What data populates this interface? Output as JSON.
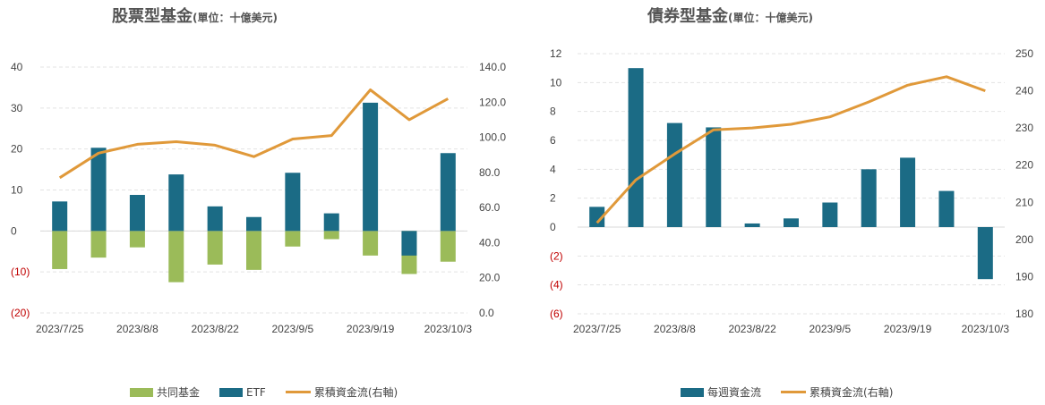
{
  "chart_data": [
    {
      "type": "bar",
      "title": "股票型基金",
      "unit": "(單位：十億美元)",
      "x_ticks": [
        "2023/7/25",
        "2023/8/8",
        "2023/8/22",
        "2023/9/5",
        "2023/9/19",
        "2023/10/3"
      ],
      "y_left_ticks": [
        "40",
        "30",
        "20",
        "10",
        "0",
        "(10)",
        "(20)"
      ],
      "y_right_ticks": [
        "140.0",
        "120.0",
        "100.0",
        "80.0",
        "60.0",
        "40.0",
        "20.0",
        "0.0"
      ],
      "ylim": [
        -20,
        40
      ],
      "ylim_right": [
        0,
        140
      ],
      "series": [
        {
          "name": "共同基金",
          "kind": "bar",
          "color": "#9bbb59",
          "values": [
            -9.3,
            -6.5,
            -4.0,
            -12.5,
            -8.2,
            -9.5,
            -3.8,
            -2.0,
            -6.0,
            -10.5,
            -7.5
          ]
        },
        {
          "name": "ETF",
          "kind": "bar",
          "color": "#1b6b85",
          "values": [
            7.2,
            20.3,
            8.8,
            13.8,
            6.0,
            3.4,
            14.2,
            4.3,
            31.3,
            -6.0,
            19.0
          ]
        },
        {
          "name": "累積資金流(右軸)",
          "kind": "line",
          "axis": "right",
          "color": "#e0993a",
          "values": [
            77,
            91,
            96,
            97.5,
            95.5,
            89,
            99,
            101,
            127,
            110,
            122
          ]
        }
      ]
    },
    {
      "type": "bar",
      "title": "債券型基金",
      "unit": "(單位：十億美元)",
      "x_ticks": [
        "2023/7/25",
        "2023/8/8",
        "2023/8/22",
        "2023/9/5",
        "2023/9/19",
        "2023/10/3"
      ],
      "y_left_ticks": [
        "12",
        "10",
        "8",
        "6",
        "4",
        "2",
        "0",
        "(2)",
        "(4)",
        "(6)"
      ],
      "y_right_ticks": [
        "250",
        "240",
        "230",
        "220",
        "210",
        "200",
        "190",
        "180"
      ],
      "ylim": [
        -6,
        12
      ],
      "ylim_right": [
        180,
        250
      ],
      "series": [
        {
          "name": "每週資金流",
          "kind": "bar",
          "color": "#1b6b85",
          "values": [
            1.4,
            11.0,
            7.2,
            6.9,
            0.25,
            0.6,
            1.7,
            4.0,
            4.8,
            2.5,
            -3.6
          ]
        },
        {
          "name": "累積資金流(右軸)",
          "kind": "line",
          "axis": "right",
          "color": "#e0993a",
          "values": [
            204.5,
            216,
            223,
            229.5,
            230,
            231,
            233,
            237,
            241.5,
            243.8,
            240
          ]
        }
      ]
    }
  ]
}
